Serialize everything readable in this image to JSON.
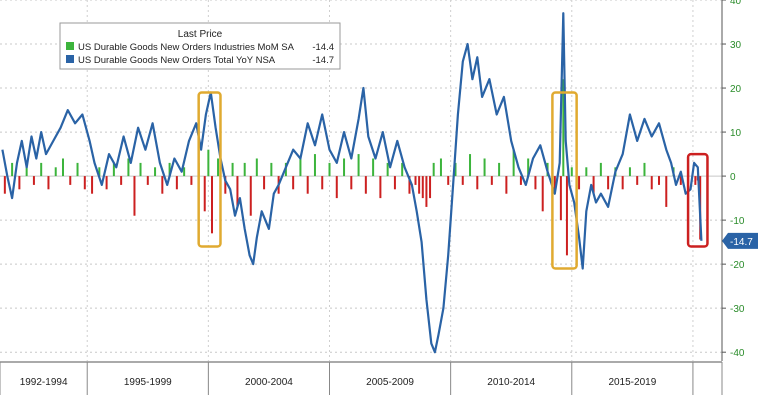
{
  "chart_data": {
    "type": "bar",
    "title": "",
    "xlabel": "",
    "ylabel": "",
    "ylim": [
      -42,
      40
    ],
    "xlim": [
      1991.4,
      2021.2
    ],
    "yticks": [
      -40,
      -30,
      -20,
      -10,
      0,
      10,
      20,
      30,
      40
    ],
    "x_periods": [
      "1992-1994",
      "1995-1999",
      "2000-2004",
      "2005-2009",
      "2010-2014",
      "2015-2019"
    ],
    "x_period_bounds": [
      1991.4,
      1995,
      2000,
      2005,
      2010,
      2015,
      2020,
      2021.2
    ],
    "grid": true,
    "legend": {
      "position": "top-left",
      "title": "Last Price",
      "entries": [
        {
          "label": "US Durable Goods New Orders Industries MoM SA",
          "value": "-14.4",
          "color": "#3cb43c"
        },
        {
          "label": "US Durable Goods New Orders Total YoY NSA",
          "value": "-14.7",
          "color": "#2a63a6"
        }
      ]
    },
    "last_value_label": "-14.7",
    "colors": {
      "up": "#3cb43c",
      "down": "#cc2020",
      "line": "#2a63a6",
      "highlight": "#e0aa30",
      "highlight_red": "#cc2020",
      "axis_text": "#2a8c2a"
    },
    "highlights": [
      {
        "x0": 1999.6,
        "x1": 2000.5,
        "y0": -16,
        "y1": 19,
        "color": "#e0aa30"
      },
      {
        "x0": 2014.2,
        "x1": 2015.2,
        "y0": -21,
        "y1": 19,
        "color": "#e0aa30"
      },
      {
        "x0": 2019.8,
        "x1": 2020.6,
        "y0": -16,
        "y1": 5,
        "color": "#cc2020"
      }
    ],
    "line_series": {
      "name": "US Durable Goods New Orders Total YoY NSA",
      "points": [
        [
          1991.5,
          6
        ],
        [
          1991.7,
          0
        ],
        [
          1991.9,
          -5
        ],
        [
          1992.1,
          3
        ],
        [
          1992.3,
          8
        ],
        [
          1992.5,
          2
        ],
        [
          1992.7,
          9
        ],
        [
          1992.9,
          4
        ],
        [
          1993.1,
          10
        ],
        [
          1993.3,
          5
        ],
        [
          1993.6,
          8
        ],
        [
          1993.9,
          11
        ],
        [
          1994.2,
          15
        ],
        [
          1994.5,
          12
        ],
        [
          1994.8,
          14
        ],
        [
          1995.1,
          8
        ],
        [
          1995.3,
          3
        ],
        [
          1995.6,
          -2
        ],
        [
          1995.9,
          5
        ],
        [
          1996.2,
          2
        ],
        [
          1996.5,
          9
        ],
        [
          1996.8,
          3
        ],
        [
          1997.1,
          11
        ],
        [
          1997.4,
          6
        ],
        [
          1997.7,
          12
        ],
        [
          1998.0,
          3
        ],
        [
          1998.3,
          -2
        ],
        [
          1998.6,
          4
        ],
        [
          1998.9,
          1
        ],
        [
          1999.2,
          8
        ],
        [
          1999.5,
          12
        ],
        [
          1999.7,
          6
        ],
        [
          1999.9,
          14
        ],
        [
          2000.1,
          19
        ],
        [
          2000.3,
          11
        ],
        [
          2000.5,
          4
        ],
        [
          2000.7,
          -1
        ],
        [
          2000.9,
          -3
        ],
        [
          2001.1,
          -9
        ],
        [
          2001.3,
          -5
        ],
        [
          2001.5,
          -12
        ],
        [
          2001.7,
          -18
        ],
        [
          2001.85,
          -20
        ],
        [
          2002.0,
          -14
        ],
        [
          2002.2,
          -8
        ],
        [
          2002.5,
          -12
        ],
        [
          2002.7,
          -4
        ],
        [
          2002.9,
          -2
        ],
        [
          2003.2,
          2
        ],
        [
          2003.5,
          6
        ],
        [
          2003.8,
          4
        ],
        [
          2004.1,
          12
        ],
        [
          2004.4,
          7
        ],
        [
          2004.7,
          14
        ],
        [
          2005.0,
          6
        ],
        [
          2005.3,
          3
        ],
        [
          2005.6,
          10
        ],
        [
          2005.9,
          4
        ],
        [
          2006.2,
          13
        ],
        [
          2006.4,
          20
        ],
        [
          2006.6,
          9
        ],
        [
          2006.9,
          4
        ],
        [
          2007.2,
          10
        ],
        [
          2007.5,
          2
        ],
        [
          2007.8,
          8
        ],
        [
          2008.1,
          2
        ],
        [
          2008.4,
          -2
        ],
        [
          2008.6,
          -8
        ],
        [
          2008.8,
          -15
        ],
        [
          2009.0,
          -28
        ],
        [
          2009.2,
          -38
        ],
        [
          2009.35,
          -40
        ],
        [
          2009.5,
          -36
        ],
        [
          2009.7,
          -30
        ],
        [
          2009.9,
          -18
        ],
        [
          2010.1,
          -2
        ],
        [
          2010.3,
          14
        ],
        [
          2010.5,
          26
        ],
        [
          2010.7,
          30
        ],
        [
          2010.9,
          22
        ],
        [
          2011.1,
          27
        ],
        [
          2011.3,
          18
        ],
        [
          2011.6,
          22
        ],
        [
          2011.9,
          14
        ],
        [
          2012.2,
          18
        ],
        [
          2012.5,
          8
        ],
        [
          2012.8,
          2
        ],
        [
          2013.1,
          -2
        ],
        [
          2013.4,
          4
        ],
        [
          2013.7,
          7
        ],
        [
          2014.0,
          1
        ],
        [
          2014.3,
          -4
        ],
        [
          2014.5,
          3
        ],
        [
          2014.65,
          37
        ],
        [
          2014.75,
          8
        ],
        [
          2014.9,
          -2
        ],
        [
          2015.1,
          -6
        ],
        [
          2015.3,
          -14
        ],
        [
          2015.45,
          -21
        ],
        [
          2015.6,
          -8
        ],
        [
          2015.8,
          -2
        ],
        [
          2016.0,
          -6
        ],
        [
          2016.2,
          -4
        ],
        [
          2016.5,
          -7
        ],
        [
          2016.8,
          1
        ],
        [
          2017.1,
          5
        ],
        [
          2017.4,
          14
        ],
        [
          2017.7,
          8
        ],
        [
          2018.0,
          13
        ],
        [
          2018.3,
          9
        ],
        [
          2018.6,
          12
        ],
        [
          2018.9,
          6
        ],
        [
          2019.1,
          3
        ],
        [
          2019.3,
          -2
        ],
        [
          2019.5,
          1
        ],
        [
          2019.7,
          -4
        ],
        [
          2019.9,
          -3
        ],
        [
          2020.05,
          3
        ],
        [
          2020.2,
          2
        ],
        [
          2020.35,
          -14.7
        ]
      ]
    },
    "bar_series": {
      "name": "US Durable Goods New Orders Industries MoM SA",
      "points": [
        [
          1991.6,
          -4
        ],
        [
          1991.9,
          3
        ],
        [
          1992.2,
          -3
        ],
        [
          1992.5,
          2
        ],
        [
          1992.8,
          -2
        ],
        [
          1993.1,
          3
        ],
        [
          1993.4,
          -3
        ],
        [
          1993.7,
          2
        ],
        [
          1994.0,
          4
        ],
        [
          1994.3,
          -2
        ],
        [
          1994.6,
          3
        ],
        [
          1994.9,
          -3
        ],
        [
          1995.2,
          -4
        ],
        [
          1995.5,
          2
        ],
        [
          1995.8,
          -3
        ],
        [
          1996.1,
          3
        ],
        [
          1996.4,
          -2
        ],
        [
          1996.7,
          4
        ],
        [
          1996.95,
          -9
        ],
        [
          1997.2,
          3
        ],
        [
          1997.5,
          -2
        ],
        [
          1997.8,
          2
        ],
        [
          1998.1,
          -4
        ],
        [
          1998.4,
          3
        ],
        [
          1998.7,
          -3
        ],
        [
          1999.0,
          2
        ],
        [
          1999.3,
          -2
        ],
        [
          1999.6,
          3
        ],
        [
          1999.85,
          -8
        ],
        [
          2000.0,
          6
        ],
        [
          2000.15,
          -13
        ],
        [
          2000.4,
          4
        ],
        [
          2000.7,
          -4
        ],
        [
          2001.0,
          3
        ],
        [
          2001.2,
          -7
        ],
        [
          2001.5,
          3
        ],
        [
          2001.75,
          -9
        ],
        [
          2002.0,
          4
        ],
        [
          2002.3,
          -3
        ],
        [
          2002.6,
          3
        ],
        [
          2002.9,
          -4
        ],
        [
          2003.2,
          3
        ],
        [
          2003.5,
          -3
        ],
        [
          2003.8,
          4
        ],
        [
          2004.1,
          -4
        ],
        [
          2004.4,
          5
        ],
        [
          2004.7,
          -3
        ],
        [
          2005.0,
          3
        ],
        [
          2005.3,
          -5
        ],
        [
          2005.6,
          4
        ],
        [
          2005.9,
          -3
        ],
        [
          2006.2,
          5
        ],
        [
          2006.5,
          -4
        ],
        [
          2006.8,
          4
        ],
        [
          2007.1,
          -5
        ],
        [
          2007.4,
          3
        ],
        [
          2007.7,
          -3
        ],
        [
          2008.0,
          3
        ],
        [
          2008.3,
          -4
        ],
        [
          2008.55,
          -2
        ],
        [
          2008.7,
          -4
        ],
        [
          2008.85,
          -5
        ],
        [
          2009.0,
          -7
        ],
        [
          2009.15,
          -5
        ],
        [
          2009.3,
          3
        ],
        [
          2009.6,
          4
        ],
        [
          2009.9,
          -2
        ],
        [
          2010.2,
          3
        ],
        [
          2010.5,
          -2
        ],
        [
          2010.8,
          5
        ],
        [
          2011.1,
          -3
        ],
        [
          2011.4,
          4
        ],
        [
          2011.7,
          -2
        ],
        [
          2012.0,
          3
        ],
        [
          2012.3,
          -4
        ],
        [
          2012.6,
          6
        ],
        [
          2012.9,
          -2
        ],
        [
          2013.2,
          4
        ],
        [
          2013.5,
          -3
        ],
        [
          2013.8,
          -8
        ],
        [
          2014.0,
          3
        ],
        [
          2014.3,
          -4
        ],
        [
          2014.55,
          -10
        ],
        [
          2014.65,
          22
        ],
        [
          2014.8,
          -18
        ],
        [
          2015.0,
          2
        ],
        [
          2015.3,
          -3
        ],
        [
          2015.6,
          2
        ],
        [
          2015.9,
          -4
        ],
        [
          2016.2,
          3
        ],
        [
          2016.5,
          -3
        ],
        [
          2016.8,
          2
        ],
        [
          2017.1,
          -3
        ],
        [
          2017.4,
          2
        ],
        [
          2017.7,
          -2
        ],
        [
          2018.0,
          3
        ],
        [
          2018.3,
          -3
        ],
        [
          2018.6,
          -2
        ],
        [
          2018.9,
          -7
        ],
        [
          2019.2,
          2
        ],
        [
          2019.5,
          -2
        ],
        [
          2019.8,
          1
        ],
        [
          2020.1,
          -2
        ],
        [
          2020.2,
          -1
        ],
        [
          2020.3,
          -14.4
        ]
      ]
    }
  }
}
